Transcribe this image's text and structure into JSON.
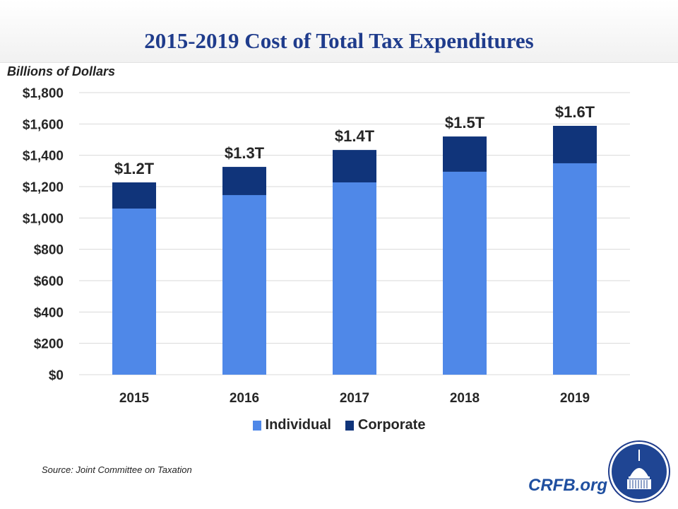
{
  "header": {
    "title": "2015-2019 Cost of Total Tax Expenditures"
  },
  "footer": {
    "source": "Source: Joint Committee on Taxation",
    "brand": "CRFB.org",
    "logo_icon": "capitol-dome-icon"
  },
  "colors": {
    "individual": "#4f88e8",
    "corporate": "#10347a",
    "grid": "#d9d9d9"
  },
  "chart_data": {
    "type": "bar",
    "stacked": true,
    "title": "2015-2019 Cost of Total Tax Expenditures",
    "ylabel": "Billions of Dollars",
    "xlabel": "",
    "categories": [
      "2015",
      "2016",
      "2017",
      "2018",
      "2019"
    ],
    "series": [
      {
        "name": "Individual",
        "values": [
          1060,
          1146,
          1227,
          1295,
          1349
        ]
      },
      {
        "name": "Corporate",
        "values": [
          167,
          180,
          207,
          225,
          239
        ]
      }
    ],
    "totals_labels": [
      "$1.2T",
      "$1.3T",
      "$1.4T",
      "$1.5T",
      "$1.6T"
    ],
    "yticks": [
      0,
      200,
      400,
      600,
      800,
      1000,
      1200,
      1400,
      1600,
      1800
    ],
    "ytick_labels": [
      "$0",
      "$200",
      "$400",
      "$600",
      "$800",
      "$1,000",
      "$1,200",
      "$1,400",
      "$1,600",
      "$1,800"
    ],
    "ylim": [
      0,
      1800
    ],
    "grid": true,
    "legend": "bottom"
  }
}
